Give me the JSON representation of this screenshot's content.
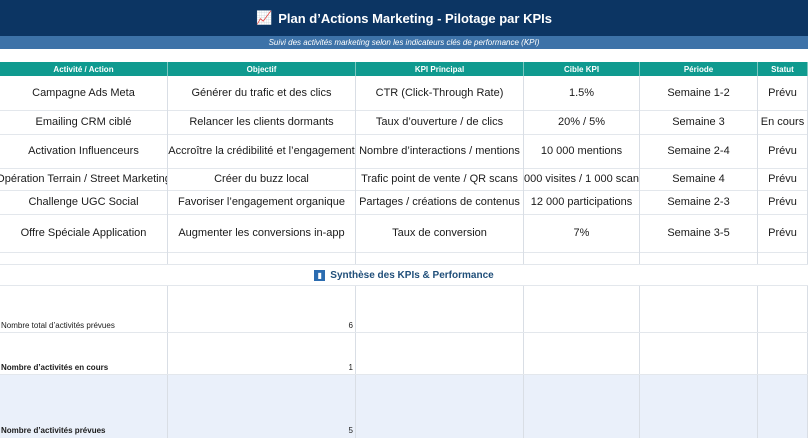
{
  "header": {
    "title_icon": "chart-increasing-icon",
    "title": "Plan d’Actions Marketing - Pilotage par KPIs",
    "subtitle": "Suivi des activités marketing selon les indicateurs clés de performance (KPI)"
  },
  "columns": [
    "Activité / Action",
    "Objectif",
    "KPI Principal",
    "Cible KPI",
    "Période",
    "Statut"
  ],
  "rows": [
    {
      "activite": "Campagne Ads Meta",
      "objectif": "Générer du trafic et des clics",
      "kpi": "CTR (Click-Through Rate)",
      "cible": "1.5%",
      "periode": "Semaine 1-2",
      "statut": "Prévu"
    },
    {
      "activite": "Emailing CRM ciblé",
      "objectif": "Relancer les clients dormants",
      "kpi": "Taux d’ouverture / de clics",
      "cible": "20% / 5%",
      "periode": "Semaine 3",
      "statut": "En cours"
    },
    {
      "activite": "Activation Influenceurs",
      "objectif": "Accroître la crédibilité et l’engagement",
      "kpi": "Nombre d’interactions / mentions",
      "cible": "10 000 mentions",
      "periode": "Semaine 2-4",
      "statut": "Prévu"
    },
    {
      "activite": "Opération Terrain / Street Marketing",
      "objectif": "Créer du buzz local",
      "kpi": "Trafic point de vente / QR scans",
      "cible": "000 visites / 1 000 scan",
      "periode": "Semaine 4",
      "statut": "Prévu"
    },
    {
      "activite": "Challenge UGC Social",
      "objectif": "Favoriser l’engagement organique",
      "kpi": "Partages / créations de contenus",
      "cible": "12 000 participations",
      "periode": "Semaine 2-3",
      "statut": "Prévu"
    },
    {
      "activite": "Offre Spéciale Application",
      "objectif": "Augmenter les conversions in-app",
      "kpi": "Taux de conversion",
      "cible": "7%",
      "periode": "Semaine 3-5",
      "statut": "Prévu"
    }
  ],
  "summary": {
    "icon": "bar-chart-icon",
    "title": "Synthèse des KPIs & Performance",
    "items": [
      {
        "label": "Nombre total d’activités prévues",
        "value": "6"
      },
      {
        "label": "Nombre d’activités en cours",
        "value": "1"
      },
      {
        "label": "Nombre d’activités prévues",
        "value": "5"
      }
    ]
  },
  "colors": {
    "title_bg": "#0c3563",
    "subtitle_bg": "#3d72a8",
    "header_bg": "#0f9a8f",
    "summary_title": "#1f4e79",
    "shaded_row": "#eaf0fa"
  }
}
